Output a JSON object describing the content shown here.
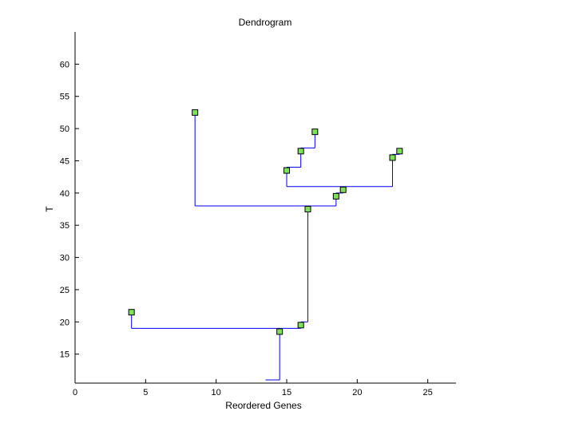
{
  "chart_data": {
    "type": "dendrogram",
    "title": "Dendrogram",
    "xlabel": "Reordered Genes",
    "ylabel": "T",
    "xlim": [
      0,
      27
    ],
    "ylim": [
      10.5,
      65
    ],
    "xticks": [
      0,
      5,
      10,
      15,
      20,
      25
    ],
    "yticks": [
      15,
      20,
      25,
      30,
      35,
      40,
      45,
      50,
      55,
      60
    ],
    "grid": false,
    "colors": {
      "line": "#0000ff",
      "marker_fill": "#7fe05a",
      "marker_edge": "#000000",
      "axis": "#000000"
    },
    "nodes": [
      {
        "x": 8.5,
        "y": 52.5
      },
      {
        "x": 17.0,
        "y": 49.5
      },
      {
        "x": 16.0,
        "y": 46.5
      },
      {
        "x": 23.0,
        "y": 46.5
      },
      {
        "x": 22.5,
        "y": 45.5
      },
      {
        "x": 15.0,
        "y": 43.5
      },
      {
        "x": 19.0,
        "y": 40.5
      },
      {
        "x": 18.5,
        "y": 39.5
      },
      {
        "x": 16.5,
        "y": 37.5
      },
      {
        "x": 4.0,
        "y": 21.5
      },
      {
        "x": 16.0,
        "y": 19.5
      },
      {
        "x": 14.5,
        "y": 18.5
      }
    ],
    "segments": [
      [
        [
          17.0,
          49.5
        ],
        [
          17.0,
          47.0
        ]
      ],
      [
        [
          16.0,
          46.5
        ],
        [
          16.0,
          47.0
        ]
      ],
      [
        [
          16.0,
          47.0
        ],
        [
          17.0,
          47.0
        ]
      ],
      [
        [
          16.0,
          46.5
        ],
        [
          16.0,
          44.0
        ]
      ],
      [
        [
          15.0,
          43.5
        ],
        [
          15.0,
          44.0
        ]
      ],
      [
        [
          15.0,
          44.0
        ],
        [
          16.0,
          44.0
        ]
      ],
      [
        [
          15.0,
          43.5
        ],
        [
          15.0,
          41.0
        ]
      ],
      [
        [
          15.0,
          41.0
        ],
        [
          22.5,
          41.0
        ]
      ],
      [
        [
          22.5,
          41.0
        ],
        [
          22.5,
          46.0
        ]
      ],
      [
        [
          22.5,
          46.0
        ],
        [
          23.0,
          46.0
        ]
      ],
      [
        [
          23.0,
          46.0
        ],
        [
          23.0,
          46.5
        ]
      ],
      [
        [
          19.0,
          40.5
        ],
        [
          19.0,
          40.0
        ]
      ],
      [
        [
          18.5,
          40.0
        ],
        [
          19.0,
          40.0
        ]
      ],
      [
        [
          18.5,
          39.5
        ],
        [
          18.5,
          38.0
        ]
      ],
      [
        [
          8.5,
          52.5
        ],
        [
          8.5,
          38.0
        ]
      ],
      [
        [
          8.5,
          38.0
        ],
        [
          18.5,
          38.0
        ]
      ],
      [
        [
          16.5,
          37.5
        ],
        [
          16.5,
          20.0
        ]
      ],
      [
        [
          16.0,
          20.0
        ],
        [
          16.5,
          20.0
        ]
      ],
      [
        [
          16.0,
          19.5
        ],
        [
          16.0,
          19.0
        ]
      ],
      [
        [
          4.0,
          21.5
        ],
        [
          4.0,
          19.0
        ]
      ],
      [
        [
          4.0,
          19.0
        ],
        [
          16.0,
          19.0
        ]
      ],
      [
        [
          14.5,
          18.5
        ],
        [
          14.5,
          11.0
        ]
      ],
      [
        [
          13.5,
          11.0
        ],
        [
          14.5,
          11.0
        ]
      ]
    ]
  }
}
